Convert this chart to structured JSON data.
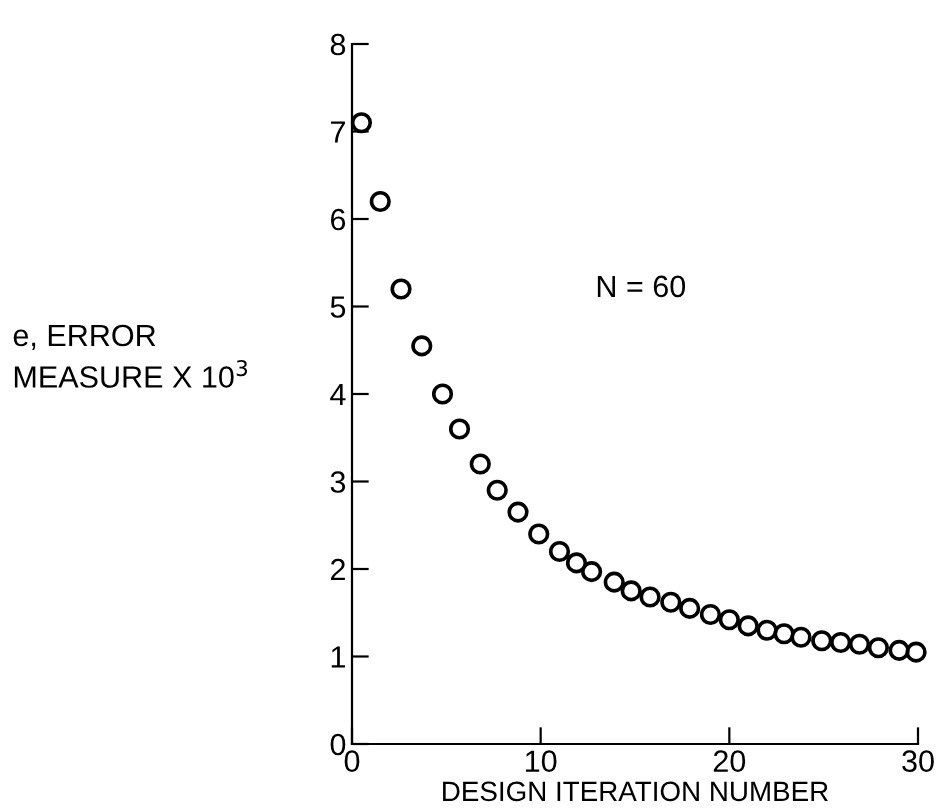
{
  "chart_data": {
    "type": "scatter",
    "xlabel": "DESIGN ITERATION NUMBER",
    "ylabel": "e, ERROR\nMEASURE X 10$^{3}$",
    "annotations": [
      "N = 60"
    ],
    "xlim": [
      0,
      30
    ],
    "ylim": [
      0,
      8
    ],
    "xticks": [
      0,
      10,
      20,
      30
    ],
    "yticks": [
      0,
      1,
      2,
      3,
      4,
      5,
      6,
      7,
      8
    ],
    "marker": "circle",
    "grid": false,
    "series": [
      {
        "color": "#000000",
        "x": [
          0.5,
          1.5,
          2.6,
          3.7,
          4.8,
          5.7,
          6.8,
          7.7,
          8.8,
          9.9,
          11.0,
          11.9,
          12.7,
          13.9,
          14.8,
          15.8,
          16.9,
          17.9,
          19.0,
          20.0,
          21.0,
          22.0,
          22.9,
          23.8,
          24.9,
          25.9,
          26.9,
          27.9,
          29.0,
          29.9
        ],
        "values": [
          7.1,
          6.2,
          5.2,
          4.55,
          4.0,
          3.6,
          3.2,
          2.9,
          2.65,
          2.4,
          2.2,
          2.07,
          1.97,
          1.85,
          1.75,
          1.68,
          1.62,
          1.55,
          1.48,
          1.42,
          1.35,
          1.3,
          1.26,
          1.22,
          1.18,
          1.16,
          1.14,
          1.1,
          1.07,
          1.05
        ]
      }
    ]
  }
}
